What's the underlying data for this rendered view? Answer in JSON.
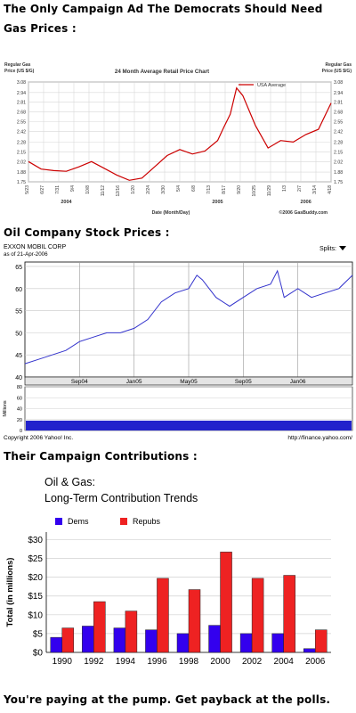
{
  "headings": {
    "line1": "The Only Campaign Ad The Democrats Should Need",
    "line2": "Gas Prices :",
    "oil": "Oil Company Stock Prices :",
    "contrib": "Their Campaign Contributions :",
    "footer": "You're paying at the pump. Get payback at the polls."
  },
  "chart_data": [
    {
      "type": "line",
      "title": "24 Month Average Retail Price Chart",
      "ylabel_left": "Regular Gas Price (US $/G)",
      "ylabel_right": "Regular Gas Price (US $/G)",
      "xlabel": "Date (Month/Day)",
      "credit": "©2006 GasBuddy.com",
      "legend": [
        "USA Average"
      ],
      "legend_position": "top-right",
      "color": "#cc0000",
      "ylim": [
        1.75,
        3.08
      ],
      "y_ticks": [
        "3.08",
        "2.94",
        "2.81",
        "2.68",
        "2.55",
        "2.42",
        "2.28",
        "2.15",
        "2.02",
        "1.88",
        "1.75"
      ],
      "x_tick_labels": [
        "5/23",
        "6/27",
        "7/31",
        "9/4",
        "10/8",
        "11/12",
        "12/16",
        "1/20",
        "2/24",
        "3/30",
        "5/4",
        "6/8",
        "7/13",
        "8/17",
        "9/20",
        "10/25",
        "11/29",
        "1/3",
        "2/7",
        "3/14",
        "4/18"
      ],
      "year_labels": [
        "2004",
        "2005",
        "2006"
      ],
      "grid": true,
      "series": [
        {
          "name": "USA Average",
          "x_months": [
            0,
            1,
            2,
            3,
            4,
            5,
            6,
            7,
            8,
            9,
            10,
            11,
            12,
            13,
            14,
            15,
            15.5,
            16,
            16.5,
            17,
            18,
            19,
            20,
            21,
            22,
            23,
            24
          ],
          "values": [
            2.02,
            1.92,
            1.9,
            1.89,
            1.95,
            2.02,
            1.93,
            1.84,
            1.77,
            1.8,
            1.95,
            2.1,
            2.18,
            2.12,
            2.16,
            2.3,
            2.48,
            2.65,
            3.0,
            2.9,
            2.5,
            2.2,
            2.3,
            2.28,
            2.38,
            2.45,
            2.8
          ]
        }
      ]
    },
    {
      "type": "line",
      "title": "EXXON MOBIL CORP",
      "subtitle": "as of 21-Apr-2006",
      "splits_label": "Splits:",
      "ylim": [
        40,
        66
      ],
      "y_ticks": [
        40,
        45,
        50,
        55,
        60,
        65
      ],
      "x_tick_labels": [
        "Sep04",
        "Jan05",
        "May05",
        "Sep05",
        "Jan06"
      ],
      "volume_label": "Millions",
      "volume_ylim": [
        0,
        80
      ],
      "volume_ticks": [
        0,
        20,
        40,
        60,
        80
      ],
      "copyright": "Copyright 2006 Yahoo! Inc.",
      "source": "http://finance.yahoo.com/",
      "color": "#3333cc",
      "grid": true,
      "series": [
        {
          "name": "Price",
          "x_months": [
            0,
            1,
            2,
            3,
            4,
            5,
            6,
            7,
            8,
            9,
            10,
            11,
            12,
            12.6,
            13,
            14,
            15,
            16,
            17,
            18,
            18.5,
            19,
            20,
            21,
            22,
            23,
            24
          ],
          "values": [
            43,
            44,
            45,
            46,
            48,
            49,
            50,
            50,
            51,
            53,
            57,
            59,
            60,
            63,
            62,
            58,
            56,
            58,
            60,
            61,
            64,
            58,
            60,
            58,
            59,
            60,
            63
          ]
        }
      ]
    },
    {
      "type": "bar",
      "title": "Oil & Gas:",
      "subtitle": "Long-Term Contribution Trends",
      "ylabel": "Total (in millions)",
      "categories": [
        "1990",
        "1992",
        "1994",
        "1996",
        "1998",
        "2000",
        "2002",
        "2004",
        "2006"
      ],
      "y_ticks": [
        "$0",
        "$5",
        "$10",
        "$15",
        "$20",
        "$25",
        "$30"
      ],
      "ylim": [
        0,
        32
      ],
      "legend_position": "top-left",
      "grid": true,
      "series": [
        {
          "name": "Dems",
          "color": "#3300ee",
          "values": [
            4,
            7,
            6.5,
            6,
            5,
            7.2,
            5,
            5,
            1
          ]
        },
        {
          "name": "Repubs",
          "color": "#ee2222",
          "values": [
            6.5,
            13.5,
            11,
            19.7,
            16.7,
            26.7,
            19.7,
            20.5,
            6
          ]
        }
      ]
    }
  ]
}
